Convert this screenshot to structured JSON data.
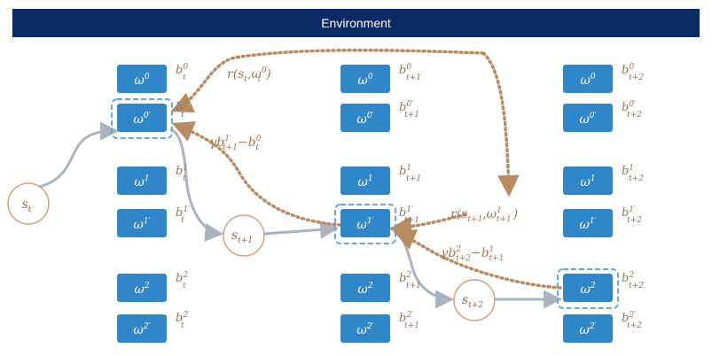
{
  "environment_label": "Environment",
  "colors": {
    "banner": "#0c2a66",
    "option_box": "#2f86c8",
    "option_highlight_border": "#6aa7d6",
    "state_circle": "#c9a58e",
    "flow_arrow": "#aab3be",
    "signal_arrow": "#b88c63"
  },
  "columns": [
    {
      "id": "t",
      "rows": [
        {
          "base": "ω",
          "sup": "0",
          "b_base": "b",
          "b_sub": "t",
          "b_sup": "0"
        },
        {
          "base": "ω",
          "sup": "0′",
          "b_base": "b",
          "b_sub": "t",
          "b_sup": "0′",
          "highlight": true
        },
        {
          "base": "ω",
          "sup": "1",
          "b_base": "b",
          "b_sub": "t",
          "b_sup": "1"
        },
        {
          "base": "ω",
          "sup": "1′",
          "b_base": "b",
          "b_sub": "t",
          "b_sup": "1′"
        },
        {
          "base": "ω",
          "sup": "2",
          "b_base": "b",
          "b_sub": "t",
          "b_sup": "2"
        },
        {
          "base": "ω",
          "sup": "2′",
          "b_base": "b",
          "b_sub": "t",
          "b_sup": "2′"
        }
      ]
    },
    {
      "id": "t+1",
      "rows": [
        {
          "base": "ω",
          "sup": "0",
          "b_base": "b",
          "b_sub": "t+1",
          "b_sup": "0"
        },
        {
          "base": "ω",
          "sup": "0′",
          "b_base": "b",
          "b_sub": "t+1",
          "b_sup": "0′"
        },
        {
          "base": "ω",
          "sup": "1",
          "b_base": "b",
          "b_sub": "t+1",
          "b_sup": "1"
        },
        {
          "base": "ω",
          "sup": "1′",
          "b_base": "b",
          "b_sub": "t+1",
          "b_sup": "1′",
          "highlight": true
        },
        {
          "base": "ω",
          "sup": "2",
          "b_base": "b",
          "b_sub": "t+1",
          "b_sup": "2"
        },
        {
          "base": "ω",
          "sup": "2′",
          "b_base": "b",
          "b_sub": "t+1",
          "b_sup": "2′"
        }
      ]
    },
    {
      "id": "t+2",
      "rows": [
        {
          "base": "ω",
          "sup": "0",
          "b_base": "b",
          "b_sub": "t+2",
          "b_sup": "0"
        },
        {
          "base": "ω",
          "sup": "0′",
          "b_base": "b",
          "b_sub": "t+2",
          "b_sup": "0′"
        },
        {
          "base": "ω",
          "sup": "1",
          "b_base": "b",
          "b_sub": "t+2",
          "b_sup": "1"
        },
        {
          "base": "ω",
          "sup": "1′",
          "b_base": "b",
          "b_sub": "t+2",
          "b_sup": "1′"
        },
        {
          "base": "ω",
          "sup": "2",
          "b_base": "b",
          "b_sub": "t+2",
          "b_sup": "2",
          "highlight": true
        },
        {
          "base": "ω",
          "sup": "2′",
          "b_base": "b",
          "b_sub": "t+2",
          "b_sup": "2′"
        }
      ]
    }
  ],
  "states": [
    {
      "base": "s",
      "sub": "t"
    },
    {
      "base": "s",
      "sub": "t+1"
    },
    {
      "base": "s",
      "sub": "t+2"
    }
  ],
  "annotations": {
    "reward_t": {
      "prefix": "r(s",
      "s_sub": "t",
      "mid": ",ω",
      "w_sub": "t",
      "w_sup": "0′",
      "suffix": ")"
    },
    "reward_t1": {
      "prefix": "r(s",
      "s_sub": "t+1",
      "mid": ",ω",
      "w_sub": "t+1",
      "w_sup": "1",
      "suffix": ")"
    },
    "td_t": {
      "gamma": "γb",
      "b1_sub": "t+1",
      "b1_sup": "1′",
      "minus": "−b",
      "b2_sub": "t",
      "b2_sup": "0"
    },
    "td_t1": {
      "gamma": "γb",
      "b1_sub": "t+2",
      "b1_sup": "2",
      "minus": "−b",
      "b2_sub": "t+1",
      "b2_sup": "1"
    }
  }
}
